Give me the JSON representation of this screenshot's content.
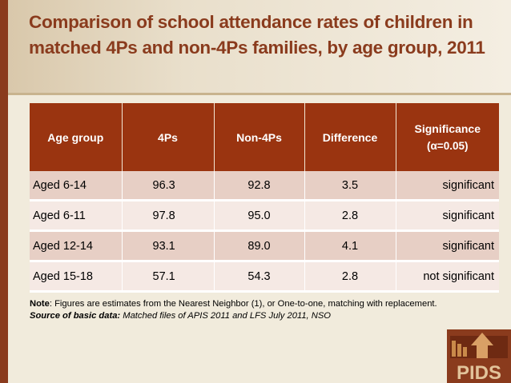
{
  "slide": {
    "title": "Comparison of school attendance rates of children in matched 4Ps and non-4Ps families, by age group, 2011"
  },
  "table": {
    "headers": {
      "age_group": "Age group",
      "fourps": "4Ps",
      "non_fourps": "Non-4Ps",
      "difference": "Difference",
      "significance": "Significance",
      "significance_alpha": "(α=0.05)"
    },
    "rows": [
      {
        "age": "Aged 6-14",
        "fourps": "96.3",
        "non_fourps": "92.8",
        "difference": "3.5",
        "significance": "significant"
      },
      {
        "age": "Aged 6-11",
        "fourps": "97.8",
        "non_fourps": "95.0",
        "difference": "2.8",
        "significance": "significant"
      },
      {
        "age": "Aged 12-14",
        "fourps": "93.1",
        "non_fourps": "89.0",
        "difference": "4.1",
        "significance": "significant"
      },
      {
        "age": "Aged 15-18",
        "fourps": "57.1",
        "non_fourps": "54.3",
        "difference": "2.8",
        "significance": "not significant"
      }
    ]
  },
  "notes": {
    "note_label": "Note",
    "note_text": ": Figures are estimates from the Nearest Neighbor (1), or One-to-one, matching with replacement.",
    "source_label": "Source of basic data:",
    "source_text": " Matched files of APIS 2011 and LFS July 2011, NSO"
  },
  "logo": {
    "text": "PIDS",
    "icon": "pids-logo-icon"
  },
  "colors": {
    "accent": "#8a3b1d",
    "header_bg": "#9a3410",
    "row_dark": "#e7cfc5",
    "row_light": "#f5e9e4",
    "background": "#f1ebdc"
  }
}
